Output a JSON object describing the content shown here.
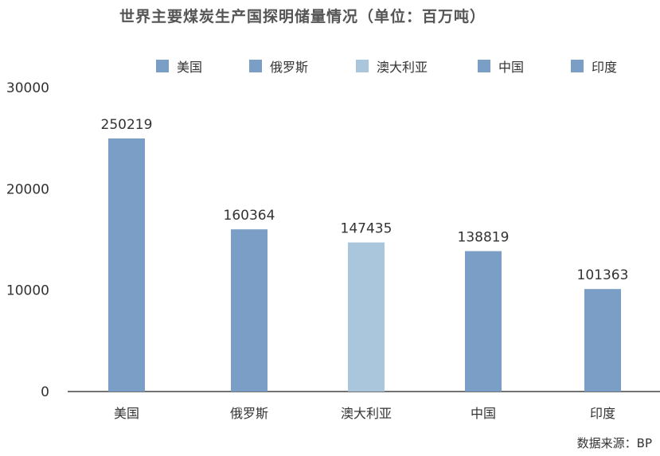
{
  "chart_data": {
    "type": "bar",
    "title": "世界主要煤炭生产国探明储量情况（单位：百万吨）",
    "categories": [
      "美国",
      "俄罗斯",
      "澳大利亚",
      "中国",
      "印度"
    ],
    "series": [
      {
        "name": "美国",
        "value": 250219,
        "color": "#7b9ec6"
      },
      {
        "name": "俄罗斯",
        "value": 160364,
        "color": "#7b9ec6"
      },
      {
        "name": "澳大利亚",
        "value": 147435,
        "color": "#a9c6dd"
      },
      {
        "name": "中国",
        "value": 138819,
        "color": "#7b9ec6"
      },
      {
        "name": "印度",
        "value": 101363,
        "color": "#7b9ec6"
      }
    ],
    "data_labels": [
      "250219",
      "160364",
      "147435",
      "138819",
      "101363"
    ],
    "yticks": [
      "0",
      "10000",
      "20000",
      "30000"
    ],
    "ylim": [
      0,
      30000
    ],
    "legend": "top",
    "grid": false
  },
  "source": "数据来源：BP"
}
